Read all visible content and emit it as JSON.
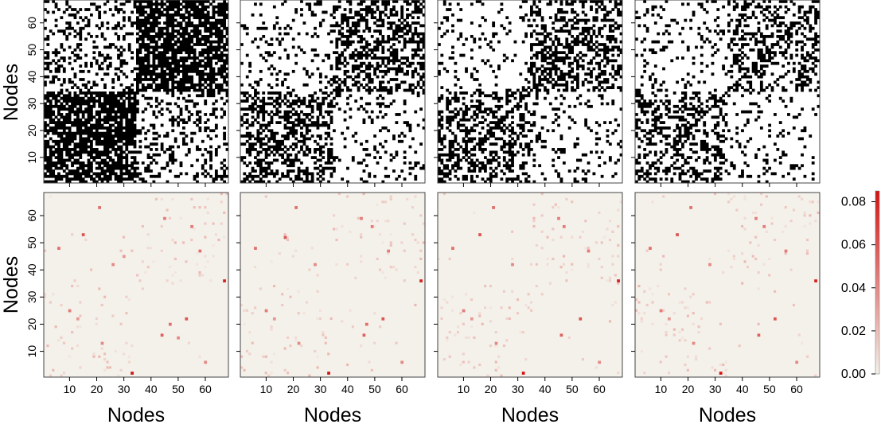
{
  "figure": {
    "row_labels": [
      "Nodes",
      "Nodes"
    ],
    "column_labels": [
      "Nodes",
      "Nodes",
      "Nodes",
      "Nodes"
    ]
  },
  "chart_data": [
    {
      "type": "heatmap",
      "subtype": "binary-adjacency",
      "xlabel": "",
      "ylabel": "Nodes",
      "xlim": [
        1,
        68
      ],
      "ylim": [
        1,
        68
      ],
      "xticks": [],
      "yticks": [
        10,
        20,
        30,
        40,
        50,
        60
      ],
      "cell_color_on": "#000000",
      "cell_color_off": "#ffffff",
      "density": 0.55,
      "block_boundary": 34
    },
    {
      "type": "heatmap",
      "subtype": "binary-adjacency",
      "xlabel": "",
      "ylabel": "",
      "xlim": [
        1,
        68
      ],
      "ylim": [
        1,
        68
      ],
      "xticks": [],
      "yticks": [],
      "cell_color_on": "#000000",
      "cell_color_off": "#ffffff",
      "density": 0.33,
      "block_boundary": 34
    },
    {
      "type": "heatmap",
      "subtype": "binary-adjacency",
      "xlabel": "",
      "ylabel": "",
      "xlim": [
        1,
        68
      ],
      "ylim": [
        1,
        68
      ],
      "xticks": [],
      "yticks": [],
      "cell_color_on": "#000000",
      "cell_color_off": "#ffffff",
      "density": 0.3,
      "block_boundary": 34
    },
    {
      "type": "heatmap",
      "subtype": "binary-adjacency",
      "xlabel": "",
      "ylabel": "",
      "xlim": [
        1,
        68
      ],
      "ylim": [
        1,
        68
      ],
      "xticks": [],
      "yticks": [],
      "cell_color_on": "#000000",
      "cell_color_off": "#ffffff",
      "density": 0.26,
      "block_boundary": 34
    },
    {
      "type": "heatmap",
      "subtype": "weighted",
      "xlabel": "Nodes",
      "ylabel": "Nodes",
      "xlim": [
        1,
        68
      ],
      "ylim": [
        1,
        68
      ],
      "xticks": [
        10,
        20,
        30,
        40,
        50,
        60
      ],
      "yticks": [
        10,
        20,
        30,
        40,
        50,
        60
      ],
      "colorscale": {
        "min": 0.0,
        "max": 0.085,
        "low_color": "#f4f1ea",
        "high_color": "#d41414"
      },
      "cells": [
        [
          33,
          2,
          0.085
        ],
        [
          67,
          36,
          0.08
        ],
        [
          21,
          63,
          0.05
        ],
        [
          55,
          56,
          0.045
        ],
        [
          6,
          48,
          0.05
        ],
        [
          15,
          53,
          0.06
        ],
        [
          10,
          25,
          0.045
        ],
        [
          13,
          22,
          0.035
        ],
        [
          22,
          13,
          0.04
        ],
        [
          44,
          16,
          0.055
        ],
        [
          53,
          22,
          0.06
        ],
        [
          45,
          59,
          0.045
        ],
        [
          58,
          47,
          0.05
        ],
        [
          47,
          20,
          0.05
        ],
        [
          60,
          6,
          0.04
        ],
        [
          50,
          15,
          0.04
        ],
        [
          26,
          42,
          0.04
        ],
        [
          30,
          45,
          0.035
        ]
      ]
    },
    {
      "type": "heatmap",
      "subtype": "weighted",
      "xlabel": "Nodes",
      "ylabel": "",
      "xlim": [
        1,
        68
      ],
      "ylim": [
        1,
        68
      ],
      "xticks": [
        10,
        20,
        30,
        40,
        50,
        60
      ],
      "yticks": [],
      "colorscale": {
        "min": 0.0,
        "max": 0.085,
        "low_color": "#f4f1ea",
        "high_color": "#d41414"
      },
      "cells": [
        [
          33,
          2,
          0.085
        ],
        [
          67,
          36,
          0.08
        ],
        [
          21,
          63,
          0.05
        ],
        [
          55,
          47,
          0.045
        ],
        [
          6,
          48,
          0.05
        ],
        [
          17,
          52,
          0.06
        ],
        [
          10,
          25,
          0.045
        ],
        [
          13,
          22,
          0.035
        ],
        [
          22,
          13,
          0.04
        ],
        [
          46,
          16,
          0.055
        ],
        [
          53,
          22,
          0.06
        ],
        [
          45,
          59,
          0.045
        ],
        [
          49,
          56,
          0.045
        ],
        [
          47,
          20,
          0.05
        ],
        [
          60,
          6,
          0.04
        ],
        [
          28,
          42,
          0.04
        ]
      ]
    },
    {
      "type": "heatmap",
      "subtype": "weighted",
      "xlabel": "Nodes",
      "ylabel": "",
      "xlim": [
        1,
        68
      ],
      "ylim": [
        1,
        68
      ],
      "xticks": [
        10,
        20,
        30,
        40,
        50,
        60
      ],
      "yticks": [],
      "colorscale": {
        "min": 0.0,
        "max": 0.085,
        "low_color": "#f4f1ea",
        "high_color": "#d41414"
      },
      "cells": [
        [
          32,
          2,
          0.085
        ],
        [
          67,
          36,
          0.08
        ],
        [
          21,
          63,
          0.05
        ],
        [
          56,
          47,
          0.045
        ],
        [
          6,
          48,
          0.05
        ],
        [
          16,
          53,
          0.06
        ],
        [
          10,
          25,
          0.045
        ],
        [
          13,
          22,
          0.035
        ],
        [
          22,
          13,
          0.04
        ],
        [
          46,
          16,
          0.055
        ],
        [
          53,
          22,
          0.06
        ],
        [
          45,
          59,
          0.045
        ],
        [
          47,
          56,
          0.045
        ],
        [
          60,
          6,
          0.04
        ],
        [
          28,
          42,
          0.04
        ]
      ]
    },
    {
      "type": "heatmap",
      "subtype": "weighted",
      "xlabel": "Nodes",
      "ylabel": "",
      "xlim": [
        1,
        68
      ],
      "ylim": [
        1,
        68
      ],
      "xticks": [
        10,
        20,
        30,
        40,
        50,
        60
      ],
      "yticks": [],
      "colorscale": {
        "min": 0.0,
        "max": 0.085,
        "low_color": "#f4f1ea",
        "high_color": "#d41414"
      },
      "cells": [
        [
          32,
          2,
          0.085
        ],
        [
          67,
          36,
          0.08
        ],
        [
          21,
          63,
          0.05
        ],
        [
          56,
          47,
          0.045
        ],
        [
          6,
          48,
          0.05
        ],
        [
          16,
          53,
          0.06
        ],
        [
          10,
          25,
          0.045
        ],
        [
          13,
          22,
          0.035
        ],
        [
          22,
          13,
          0.04
        ],
        [
          46,
          16,
          0.055
        ],
        [
          52,
          22,
          0.06
        ],
        [
          45,
          59,
          0.045
        ],
        [
          48,
          56,
          0.045
        ],
        [
          60,
          6,
          0.04
        ],
        [
          28,
          42,
          0.04
        ]
      ]
    }
  ],
  "colorbar": {
    "ticks": [
      "0.00",
      "0.02",
      "0.04",
      "0.06",
      "0.08"
    ],
    "tick_values": [
      0.0,
      0.02,
      0.04,
      0.06,
      0.08
    ],
    "min": 0.0,
    "max": 0.085,
    "low_color": "#f4f1ea",
    "high_color": "#d41414"
  }
}
